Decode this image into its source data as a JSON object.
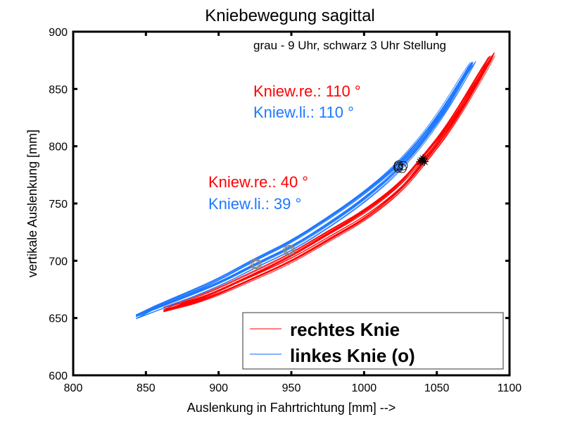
{
  "chart_data": {
    "type": "line",
    "title": "Kniebewegung sagittal",
    "xlabel": "Auslenkung in Fahrtrichtung [mm] -->",
    "ylabel": "vertikale Auslenkung [mm]",
    "xlim": [
      800,
      1100
    ],
    "ylim": [
      600,
      900
    ],
    "xticks": [
      800,
      850,
      900,
      950,
      1000,
      1050,
      1100
    ],
    "yticks": [
      600,
      650,
      700,
      750,
      800,
      850,
      900
    ],
    "grid": false,
    "legend_position": "bottom-right",
    "series": [
      {
        "name": "rechtes Knie",
        "color": "#ff0000",
        "legend_color": "#ff8080",
        "x": [
          862,
          890,
          925,
          950,
          975,
          1000,
          1025,
          1040,
          1060,
          1088
        ],
        "y": [
          658,
          668,
          688,
          703,
          722,
          740,
          765,
          788,
          820,
          880
        ],
        "loop_halfwidth": 4,
        "cycles": 10
      },
      {
        "name": "linkes Knie (o)",
        "color": "#1e78ff",
        "legend_color": "#80b4ff",
        "x": [
          843,
          870,
          900,
          925,
          950,
          975,
          1000,
          1025,
          1050,
          1075
        ],
        "y": [
          651,
          665,
          681,
          698,
          713,
          733,
          755,
          782,
          820,
          872
        ],
        "loop_halfwidth": 4,
        "cycles": 10
      }
    ],
    "markers": [
      {
        "label": "grau - 9 Uhr",
        "symbol": "circle",
        "color": "#888888",
        "points": [
          [
            925,
            697
          ],
          [
            948,
            709
          ]
        ]
      },
      {
        "label": "schwarz 3 Uhr",
        "symbol": "circle",
        "color": "#000000",
        "points": [
          [
            1025,
            782
          ]
        ]
      },
      {
        "label": "schwarz 3 Uhr",
        "symbol": "asterisk",
        "color": "#000000",
        "points": [
          [
            1040,
            788
          ]
        ]
      }
    ],
    "annotations": [
      {
        "text": "grau - 9 Uhr, schwarz 3 Uhr Stellung",
        "color": "#000000"
      },
      {
        "text": "Kniew.re.: 110 °",
        "color": "#ff0000"
      },
      {
        "text": "Kniew.li.: 110 °",
        "color": "#1e78ff"
      },
      {
        "text": "Kniew.re.: 40 °",
        "color": "#ff0000"
      },
      {
        "text": "Kniew.li.: 39 °",
        "color": "#1e78ff"
      }
    ]
  }
}
